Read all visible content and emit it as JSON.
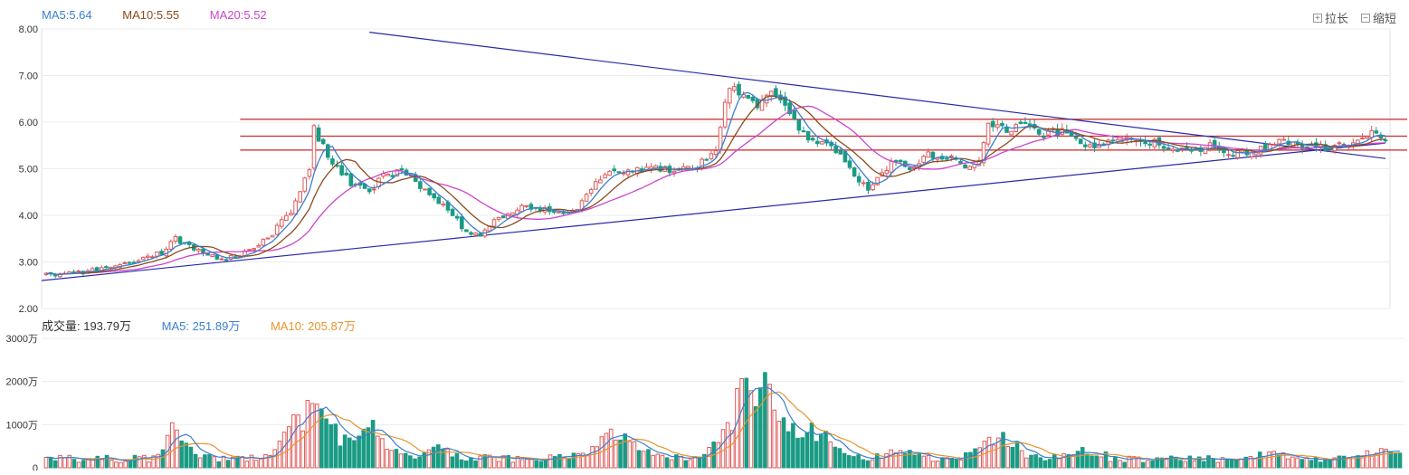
{
  "legend_price": [
    {
      "label": "MA5:5.64",
      "color": "#3a7fd0"
    },
    {
      "label": "MA10:5.55",
      "color": "#8b4a1c"
    },
    {
      "label": "MA20:5.52",
      "color": "#cc44cc"
    }
  ],
  "legend_volume": [
    {
      "label": "成交量: 193.79万",
      "color": "#333333"
    },
    {
      "label": "MA5: 251.89万",
      "color": "#3a7fd0"
    },
    {
      "label": "MA10: 205.87万",
      "color": "#e8952e"
    }
  ],
  "zoom": {
    "in_label": "拉长",
    "out_label": "缩短",
    "in_glyph": "+",
    "out_glyph": "−"
  },
  "colors": {
    "up": "#e05a5a",
    "down": "#1a9b84",
    "ma5": "#3a7fd0",
    "ma10": "#8b4a1c",
    "ma20": "#cc44cc",
    "vma5": "#3a7fd0",
    "vma10": "#e8952e",
    "trend": "#2a2aa8",
    "hline": "#cc2222"
  },
  "chart_data": [
    {
      "type": "candlestick",
      "ylim": [
        2.0,
        8.0
      ],
      "yticks": [
        "2.00",
        "3.00",
        "4.00",
        "5.00",
        "6.00",
        "7.00",
        "8.00"
      ],
      "anchors": [
        [
          0,
          2.72
        ],
        [
          8,
          2.78
        ],
        [
          15,
          2.92
        ],
        [
          20,
          3.05
        ],
        [
          25,
          3.2
        ],
        [
          28,
          3.5
        ],
        [
          32,
          3.3
        ],
        [
          38,
          3.05
        ],
        [
          42,
          3.15
        ],
        [
          48,
          3.5
        ],
        [
          53,
          4.1
        ],
        [
          57,
          5.0
        ],
        [
          58,
          5.85
        ],
        [
          60,
          5.5
        ],
        [
          62,
          5.1
        ],
        [
          66,
          4.7
        ],
        [
          70,
          4.5
        ],
        [
          73,
          4.85
        ],
        [
          77,
          4.95
        ],
        [
          80,
          4.7
        ],
        [
          84,
          4.4
        ],
        [
          88,
          4.0
        ],
        [
          91,
          3.65
        ],
        [
          94,
          3.6
        ],
        [
          97,
          3.85
        ],
        [
          100,
          4.05
        ],
        [
          103,
          4.2
        ],
        [
          107,
          4.15
        ],
        [
          111,
          4.05
        ],
        [
          115,
          4.15
        ],
        [
          119,
          4.7
        ],
        [
          123,
          5.0
        ],
        [
          127,
          4.95
        ],
        [
          132,
          5.0
        ],
        [
          137,
          4.95
        ],
        [
          141,
          5.05
        ],
        [
          145,
          5.4
        ],
        [
          148,
          6.8
        ],
        [
          151,
          6.6
        ],
        [
          154,
          6.4
        ],
        [
          157,
          6.6
        ],
        [
          160,
          6.3
        ],
        [
          163,
          5.9
        ],
        [
          166,
          5.6
        ],
        [
          169,
          5.5
        ],
        [
          172,
          5.35
        ],
        [
          175,
          4.9
        ],
        [
          178,
          4.55
        ],
        [
          180,
          4.8
        ],
        [
          183,
          5.1
        ],
        [
          187,
          5.05
        ],
        [
          191,
          5.3
        ],
        [
          195,
          5.25
        ],
        [
          199,
          5.05
        ],
        [
          202,
          5.15
        ],
        [
          204,
          6.0
        ],
        [
          208,
          5.85
        ],
        [
          212,
          5.95
        ],
        [
          216,
          5.75
        ],
        [
          220,
          5.8
        ],
        [
          224,
          5.55
        ],
        [
          228,
          5.45
        ],
        [
          232,
          5.65
        ],
        [
          236,
          5.6
        ],
        [
          240,
          5.55
        ],
        [
          244,
          5.45
        ],
        [
          248,
          5.35
        ],
        [
          252,
          5.5
        ],
        [
          256,
          5.3
        ],
        [
          260,
          5.35
        ],
        [
          264,
          5.45
        ],
        [
          268,
          5.6
        ],
        [
          272,
          5.5
        ],
        [
          276,
          5.45
        ],
        [
          280,
          5.5
        ],
        [
          284,
          5.55
        ],
        [
          287,
          5.75
        ],
        [
          290,
          5.65
        ]
      ],
      "trendlines": [
        {
          "name": "upper-trendline",
          "from": [
            70,
            7.93
          ],
          "to": [
            290,
            5.22
          ]
        },
        {
          "name": "lower-trendline",
          "from": [
            -1,
            2.6
          ],
          "to": [
            290,
            5.55
          ]
        }
      ],
      "hlines": [
        {
          "name": "resistance-line-1",
          "from": 42,
          "value": 6.06
        },
        {
          "name": "resistance-line-2",
          "from": 42,
          "value": 5.7
        },
        {
          "name": "resistance-line-3",
          "from": 42,
          "value": 5.4
        }
      ]
    },
    {
      "type": "bar",
      "ylim": [
        0,
        3000
      ],
      "yticks": [
        {
          "v": 0,
          "label": "0"
        },
        {
          "v": 1000,
          "label": "1000万"
        },
        {
          "v": 2000,
          "label": "2000万"
        },
        {
          "v": 3000,
          "label": "3000万"
        }
      ],
      "unit": "万",
      "bursts": [
        {
          "at": 28,
          "h": 700,
          "w": 3
        },
        {
          "at": 57,
          "h": 1300,
          "w": 6
        },
        {
          "at": 70,
          "h": 600,
          "w": 4
        },
        {
          "at": 84,
          "h": 250,
          "w": 4
        },
        {
          "at": 122,
          "h": 500,
          "w": 6
        },
        {
          "at": 152,
          "h": 1700,
          "w": 7
        },
        {
          "at": 165,
          "h": 600,
          "w": 5
        },
        {
          "at": 184,
          "h": 250,
          "w": 4
        },
        {
          "at": 204,
          "h": 500,
          "w": 5
        },
        {
          "at": 222,
          "h": 250,
          "w": 4
        },
        {
          "at": 262,
          "h": 150,
          "w": 4
        },
        {
          "at": 286,
          "h": 150,
          "w": 4
        }
      ]
    }
  ]
}
